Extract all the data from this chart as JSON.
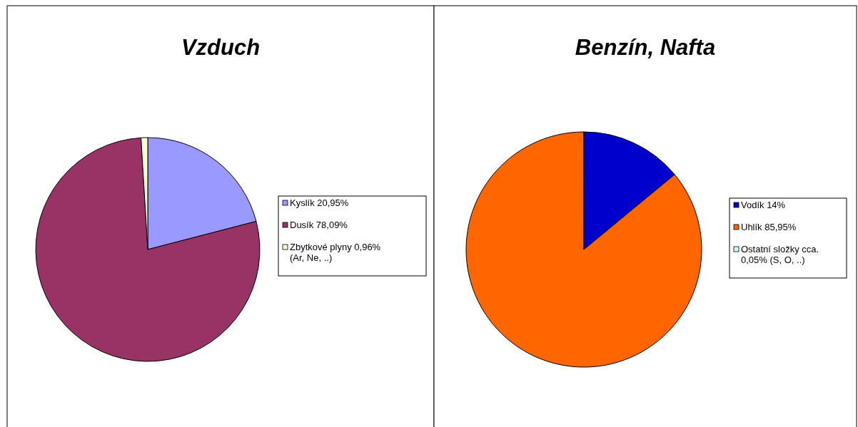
{
  "chart_data": [
    {
      "type": "pie",
      "title": "Vzduch",
      "categories": [
        "Kyslík 20,95%",
        "Dusík 78,09%",
        "Zbytkové plyny 0,96%\n(Ar, Ne, ..)"
      ],
      "values": [
        20.95,
        78.09,
        0.96
      ],
      "colors": [
        "#9999ff",
        "#993366",
        "#ffffcc"
      ],
      "legend": "right"
    },
    {
      "type": "pie",
      "title": "Benzín, Nafta",
      "categories": [
        "Vodík 14%",
        "Uhlík 85,95%",
        "Ostatní složky cca.\n0,05% (S, O, ..)"
      ],
      "values": [
        14,
        85.95,
        0.05
      ],
      "colors": [
        "#0000cc",
        "#ff6600",
        "#ccffff"
      ],
      "legend": "right"
    }
  ]
}
